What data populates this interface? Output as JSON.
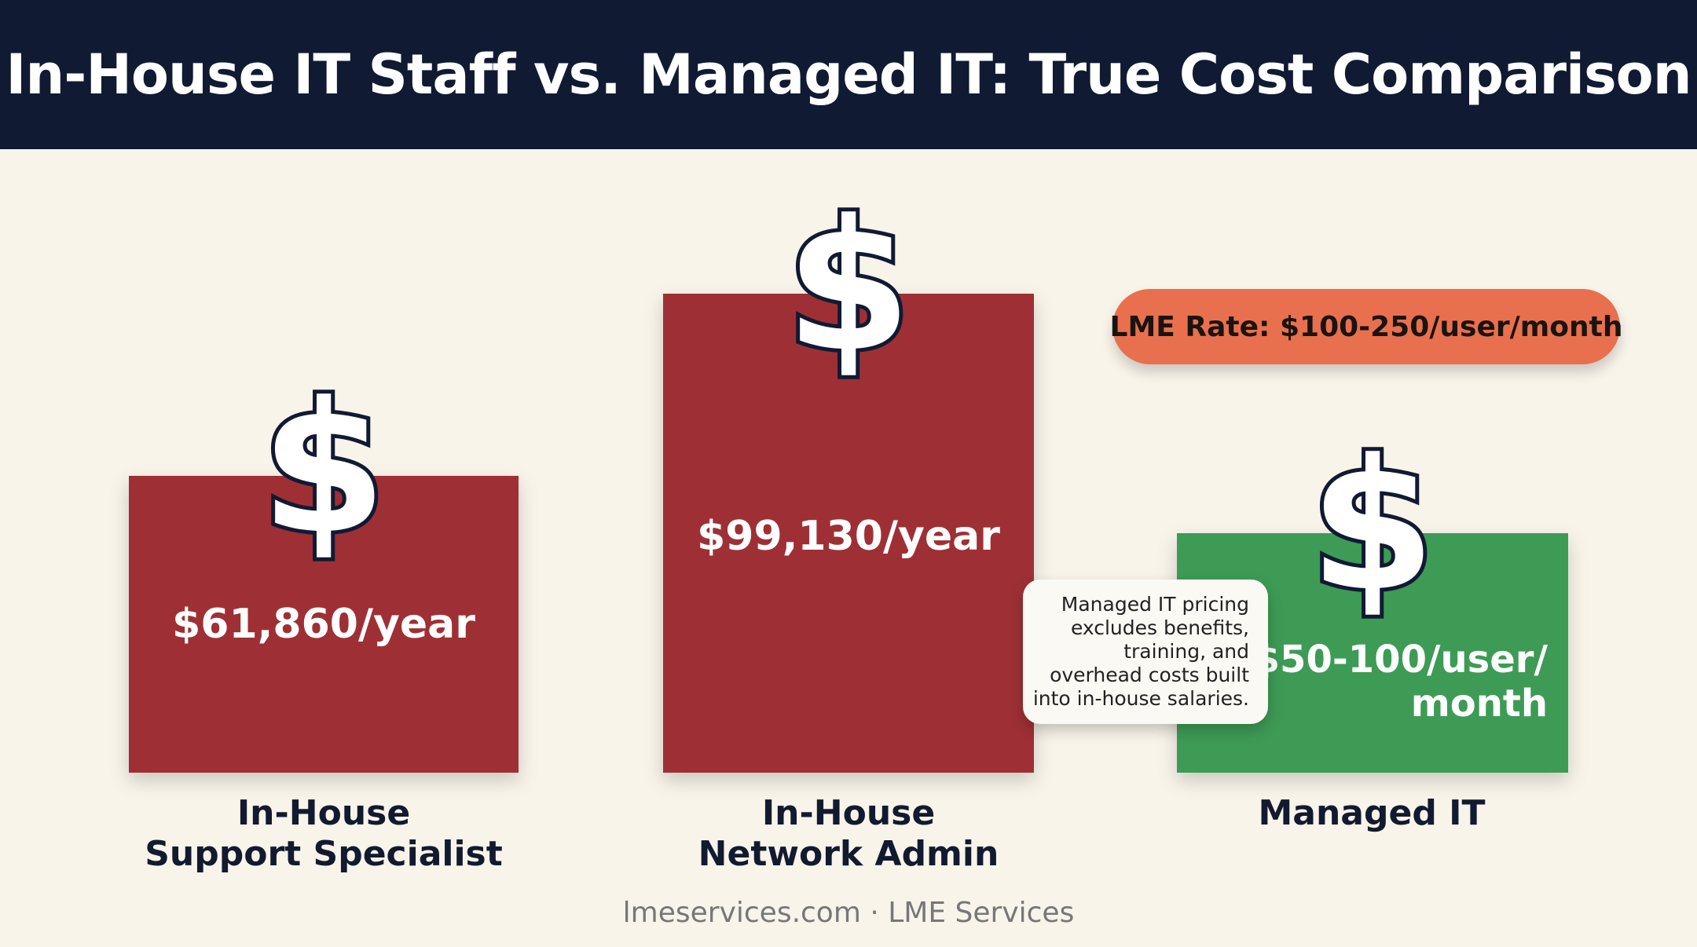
{
  "header": {
    "title": "In-House IT Staff vs. Managed IT: True Cost Comparison"
  },
  "chart_data": {
    "type": "bar",
    "title": "In-House IT Staff vs. Managed IT: True Cost Comparison",
    "categories": [
      [
        "In-House",
        "Support Specialist"
      ],
      [
        "In-House",
        "Network Admin"
      ],
      [
        "Managed IT"
      ]
    ],
    "values": [
      61860,
      99130,
      null
    ],
    "value_labels": [
      [
        "$61,860/year"
      ],
      [
        "$99,130/year"
      ],
      [
        "$50-100/user/",
        "month"
      ]
    ],
    "colors": [
      "#9e3035",
      "#9e3035",
      "#3d9b55"
    ],
    "bar_fill_levels": [
      0.62,
      1.0,
      0.5
    ],
    "icon": "dollar-sign-icon",
    "icon_glyph": "$",
    "annotations": {
      "rate_pill": "LME Rate: $100-250/user/month",
      "note": "Managed IT pricing excludes benefits, training, and overhead costs built into in-house salaries."
    }
  },
  "footer": {
    "text": "lmeservices.com · LME Services"
  }
}
